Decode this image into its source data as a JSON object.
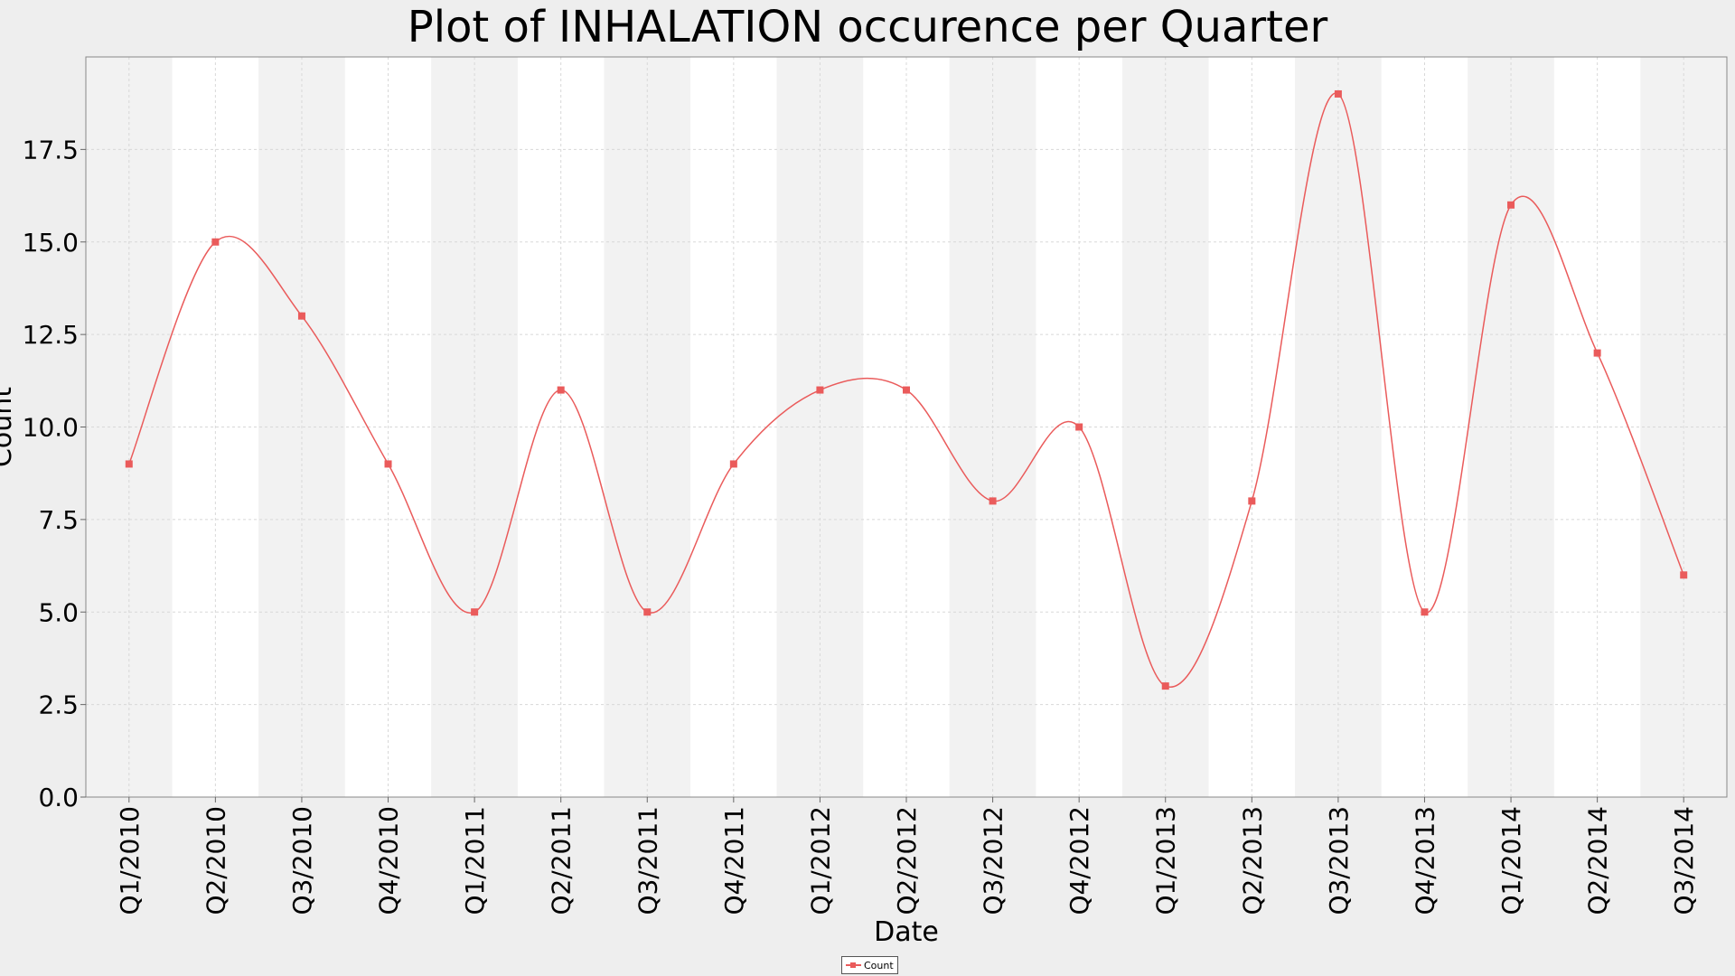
{
  "chart_data": {
    "type": "line",
    "title": "Plot of INHALATION occurence per Quarter",
    "xlabel": "Date",
    "ylabel": "Count",
    "categories": [
      "Q1/2010",
      "Q2/2010",
      "Q3/2010",
      "Q4/2010",
      "Q1/2011",
      "Q2/2011",
      "Q3/2011",
      "Q4/2011",
      "Q1/2012",
      "Q2/2012",
      "Q3/2012",
      "Q4/2012",
      "Q1/2013",
      "Q2/2013",
      "Q3/2013",
      "Q4/2013",
      "Q1/2014",
      "Q2/2014",
      "Q3/2014"
    ],
    "series": [
      {
        "name": "Count",
        "color": "#ea5b5b",
        "values": [
          9,
          15,
          13,
          9,
          5,
          11,
          5,
          9,
          11,
          11,
          8,
          10,
          3,
          8,
          19,
          5,
          16,
          12,
          6
        ]
      }
    ],
    "ylim": [
      0,
      20
    ],
    "yticks": [
      "0.0",
      "2.5",
      "5.0",
      "7.5",
      "10.0",
      "12.5",
      "15.0",
      "17.5"
    ],
    "grid": true,
    "line_style": "smoothed",
    "legend_position": "bottom-center",
    "band_colors": [
      "#f2f2f2",
      "#ffffff"
    ]
  }
}
